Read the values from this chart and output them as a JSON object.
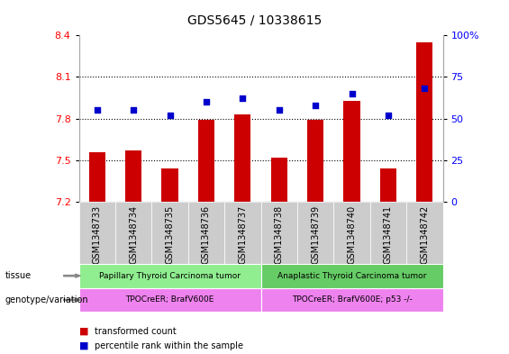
{
  "title": "GDS5645 / 10338615",
  "samples": [
    "GSM1348733",
    "GSM1348734",
    "GSM1348735",
    "GSM1348736",
    "GSM1348737",
    "GSM1348738",
    "GSM1348739",
    "GSM1348740",
    "GSM1348741",
    "GSM1348742"
  ],
  "bar_values": [
    7.56,
    7.57,
    7.44,
    7.79,
    7.83,
    7.52,
    7.79,
    7.93,
    7.44,
    8.35
  ],
  "dot_values": [
    55,
    55,
    52,
    60,
    62,
    55,
    58,
    65,
    52,
    68
  ],
  "y_min": 7.2,
  "y_max": 8.4,
  "y_ticks": [
    7.2,
    7.5,
    7.8,
    8.1,
    8.4
  ],
  "y2_ticks": [
    0,
    25,
    50,
    75,
    100
  ],
  "bar_color": "#cc0000",
  "dot_color": "#0000cc",
  "bar_base": 7.2,
  "tissue_labels": [
    "Papillary Thyroid Carcinoma tumor",
    "Anaplastic Thyroid Carcinoma tumor"
  ],
  "tissue_color_1": "#90ee90",
  "tissue_color_2": "#66cc66",
  "genotype_labels": [
    "TPOCreER; BrafV600E",
    "TPOCreER; BrafV600E; p53 -/-"
  ],
  "genotype_color": "#ee82ee",
  "group1_count": 5,
  "group2_count": 5,
  "legend_red_label": "transformed count",
  "legend_blue_label": "percentile rank within the sample",
  "row_label_tissue": "tissue",
  "row_label_genotype": "genotype/variation",
  "xticklabel_bg": "#cccccc",
  "spine_color": "#aaaaaa"
}
